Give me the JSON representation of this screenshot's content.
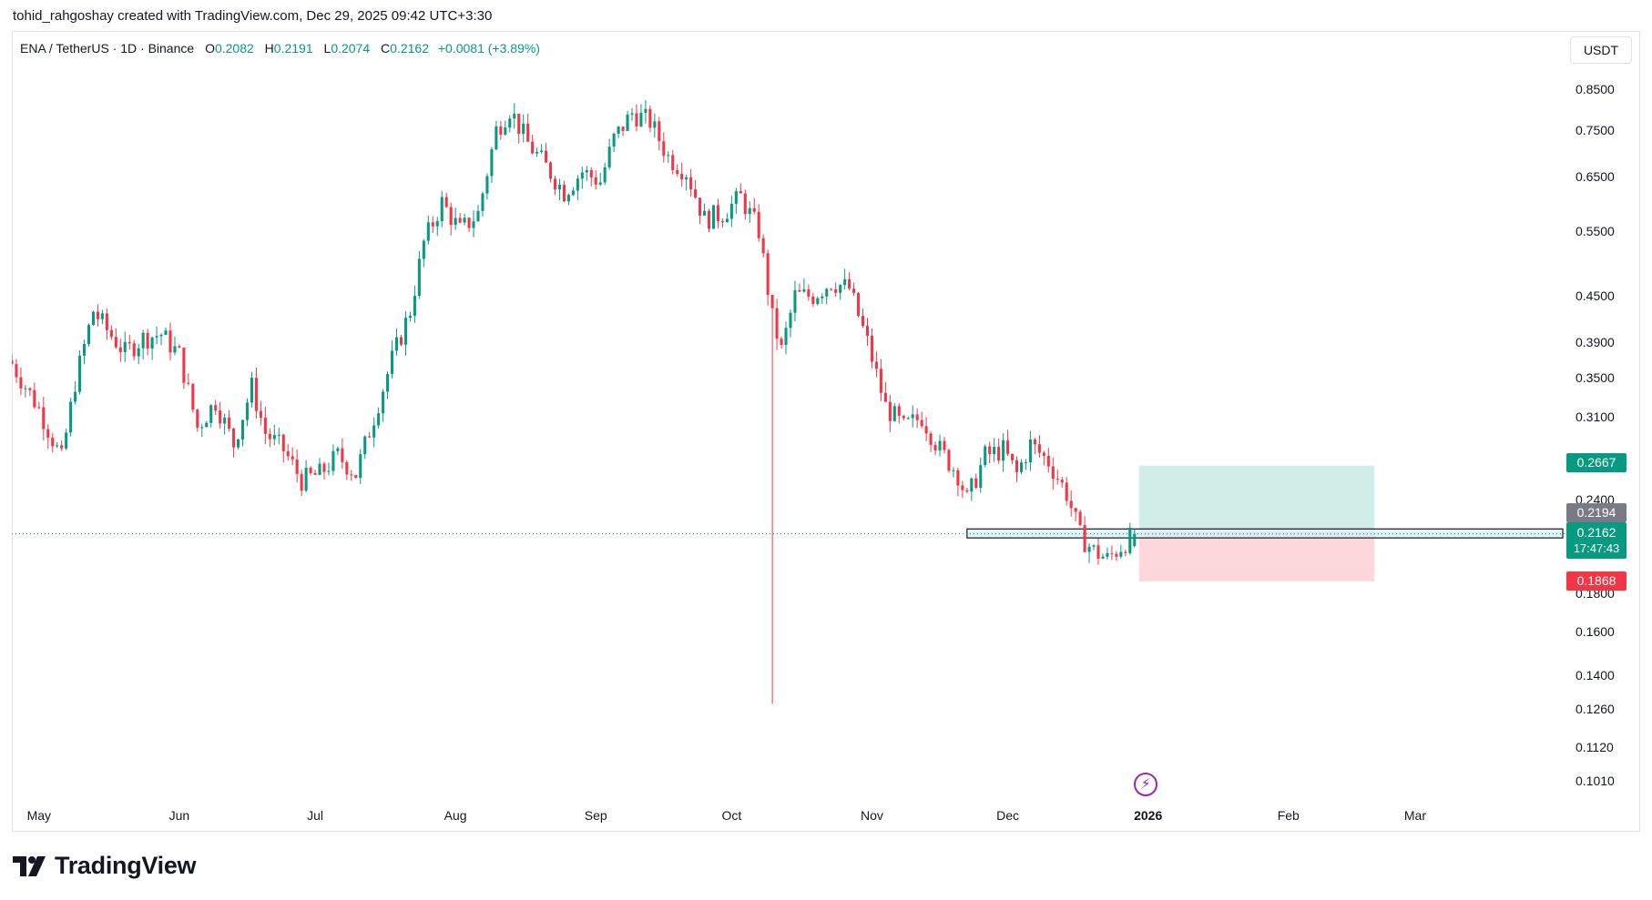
{
  "header": {
    "text": "tohid_rahgoshay created with TradingView.com, Dec 29, 2025 09:42 UTC+3:30"
  },
  "legend": {
    "symbol": "ENA / TetherUS · 1D · Binance",
    "open_label": "O",
    "open": "0.2082",
    "high_label": "H",
    "high": "0.2191",
    "low_label": "L",
    "low": "0.2074",
    "close_label": "C",
    "close": "0.2162",
    "change": "+0.0081 (+3.89%)"
  },
  "currency": "USDT",
  "badges": {
    "take_profit": "0.2667",
    "entry": "0.2194",
    "last_price": "0.2162",
    "countdown": "17:47:43",
    "stop_loss": "0.1868"
  },
  "footer": {
    "brand": "TradingView"
  },
  "icons": {
    "brand_logo": "tradingview-logo-icon",
    "event_marker": "lightning-icon"
  },
  "colors": {
    "up": "#089981",
    "down": "#f23645",
    "target_zone": "#d1ede7",
    "stop_zone": "#fcd8dc",
    "support_zone": "#d7f3f8",
    "brand": "#131722"
  },
  "chart_data": {
    "type": "candlestick",
    "title": "ENA / TetherUS · 1D · Binance",
    "xlabel": "",
    "ylabel": "",
    "y_scale": "log",
    "ylim": [
      0.095,
      0.92
    ],
    "y_ticks": [
      "0.8500",
      "0.7500",
      "0.6500",
      "0.5500",
      "0.4500",
      "0.3900",
      "0.3500",
      "0.3100",
      "0.2400",
      "0.1800",
      "0.1600",
      "0.1400",
      "0.1260",
      "0.1120",
      "0.1010"
    ],
    "x_ticks": [
      {
        "label": "May",
        "date": "2025-05-01"
      },
      {
        "label": "Jun",
        "date": "2025-06-01"
      },
      {
        "label": "Jul",
        "date": "2025-07-01"
      },
      {
        "label": "Aug",
        "date": "2025-08-01"
      },
      {
        "label": "Sep",
        "date": "2025-09-01"
      },
      {
        "label": "Oct",
        "date": "2025-10-01"
      },
      {
        "label": "Nov",
        "date": "2025-11-01"
      },
      {
        "label": "Dec",
        "date": "2025-12-01"
      },
      {
        "label": "2026",
        "date": "2026-01-01",
        "bold": true
      },
      {
        "label": "Feb",
        "date": "2026-02-01"
      },
      {
        "label": "Mar",
        "date": "2026-03-01"
      }
    ],
    "x_range": [
      "2025-04-25",
      "2026-04-03"
    ],
    "grid": false,
    "last_close": 0.2162,
    "close_series": [
      {
        "date": "2025-04-25",
        "close": 0.365
      },
      {
        "date": "2025-05-01",
        "close": 0.318
      },
      {
        "date": "2025-05-06",
        "close": 0.272
      },
      {
        "date": "2025-05-09",
        "close": 0.345
      },
      {
        "date": "2025-05-13",
        "close": 0.43
      },
      {
        "date": "2025-05-16",
        "close": 0.405
      },
      {
        "date": "2025-05-20",
        "close": 0.378
      },
      {
        "date": "2025-05-24",
        "close": 0.395
      },
      {
        "date": "2025-05-28",
        "close": 0.4
      },
      {
        "date": "2025-06-01",
        "close": 0.375
      },
      {
        "date": "2025-06-05",
        "close": 0.3
      },
      {
        "date": "2025-06-09",
        "close": 0.325
      },
      {
        "date": "2025-06-13",
        "close": 0.285
      },
      {
        "date": "2025-06-17",
        "close": 0.34
      },
      {
        "date": "2025-06-20",
        "close": 0.295
      },
      {
        "date": "2025-06-24",
        "close": 0.28
      },
      {
        "date": "2025-06-28",
        "close": 0.255
      },
      {
        "date": "2025-07-02",
        "close": 0.26
      },
      {
        "date": "2025-07-06",
        "close": 0.275
      },
      {
        "date": "2025-07-10",
        "close": 0.26
      },
      {
        "date": "2025-07-14",
        "close": 0.31
      },
      {
        "date": "2025-07-18",
        "close": 0.37
      },
      {
        "date": "2025-07-22",
        "close": 0.43
      },
      {
        "date": "2025-07-25",
        "close": 0.53
      },
      {
        "date": "2025-07-29",
        "close": 0.6
      },
      {
        "date": "2025-08-02",
        "close": 0.55
      },
      {
        "date": "2025-08-06",
        "close": 0.58
      },
      {
        "date": "2025-08-10",
        "close": 0.75
      },
      {
        "date": "2025-08-13",
        "close": 0.8
      },
      {
        "date": "2025-08-17",
        "close": 0.72
      },
      {
        "date": "2025-08-21",
        "close": 0.67
      },
      {
        "date": "2025-08-25",
        "close": 0.62
      },
      {
        "date": "2025-08-29",
        "close": 0.66
      },
      {
        "date": "2025-09-02",
        "close": 0.64
      },
      {
        "date": "2025-09-05",
        "close": 0.73
      },
      {
        "date": "2025-09-09",
        "close": 0.79
      },
      {
        "date": "2025-09-13",
        "close": 0.77
      },
      {
        "date": "2025-09-17",
        "close": 0.69
      },
      {
        "date": "2025-09-21",
        "close": 0.66
      },
      {
        "date": "2025-09-25",
        "close": 0.57
      },
      {
        "date": "2025-09-29",
        "close": 0.58
      },
      {
        "date": "2025-10-03",
        "close": 0.61
      },
      {
        "date": "2025-10-07",
        "close": 0.55
      },
      {
        "date": "2025-10-10",
        "close": 0.42
      },
      {
        "date": "2025-10-12",
        "close": 0.38
      },
      {
        "date": "2025-10-15",
        "close": 0.45
      },
      {
        "date": "2025-10-19",
        "close": 0.45
      },
      {
        "date": "2025-10-23",
        "close": 0.47
      },
      {
        "date": "2025-10-27",
        "close": 0.46
      },
      {
        "date": "2025-10-31",
        "close": 0.39
      },
      {
        "date": "2025-11-04",
        "close": 0.32
      },
      {
        "date": "2025-11-08",
        "close": 0.3
      },
      {
        "date": "2025-11-12",
        "close": 0.31
      },
      {
        "date": "2025-11-16",
        "close": 0.28
      },
      {
        "date": "2025-11-20",
        "close": 0.26
      },
      {
        "date": "2025-11-22",
        "close": 0.24
      },
      {
        "date": "2025-11-26",
        "close": 0.275
      },
      {
        "date": "2025-11-30",
        "close": 0.28
      },
      {
        "date": "2025-12-03",
        "close": 0.26
      },
      {
        "date": "2025-12-06",
        "close": 0.285
      },
      {
        "date": "2025-12-10",
        "close": 0.27
      },
      {
        "date": "2025-12-14",
        "close": 0.245
      },
      {
        "date": "2025-12-17",
        "close": 0.215
      },
      {
        "date": "2025-12-20",
        "close": 0.205
      },
      {
        "date": "2025-12-23",
        "close": 0.2
      },
      {
        "date": "2025-12-26",
        "close": 0.208
      },
      {
        "date": "2025-12-29",
        "close": 0.2162
      }
    ],
    "annotations": {
      "october_wick_low": {
        "date": "2025-10-10",
        "price": 0.128
      },
      "support_zone": {
        "from": "2025-11-22",
        "to": "2026-04-03",
        "top": 0.2195,
        "bottom": 0.2135
      },
      "long_position": {
        "from": "2025-12-30",
        "to": "2026-02-20",
        "target": 0.2667,
        "entry": 0.2194,
        "stop": 0.1868
      }
    }
  }
}
